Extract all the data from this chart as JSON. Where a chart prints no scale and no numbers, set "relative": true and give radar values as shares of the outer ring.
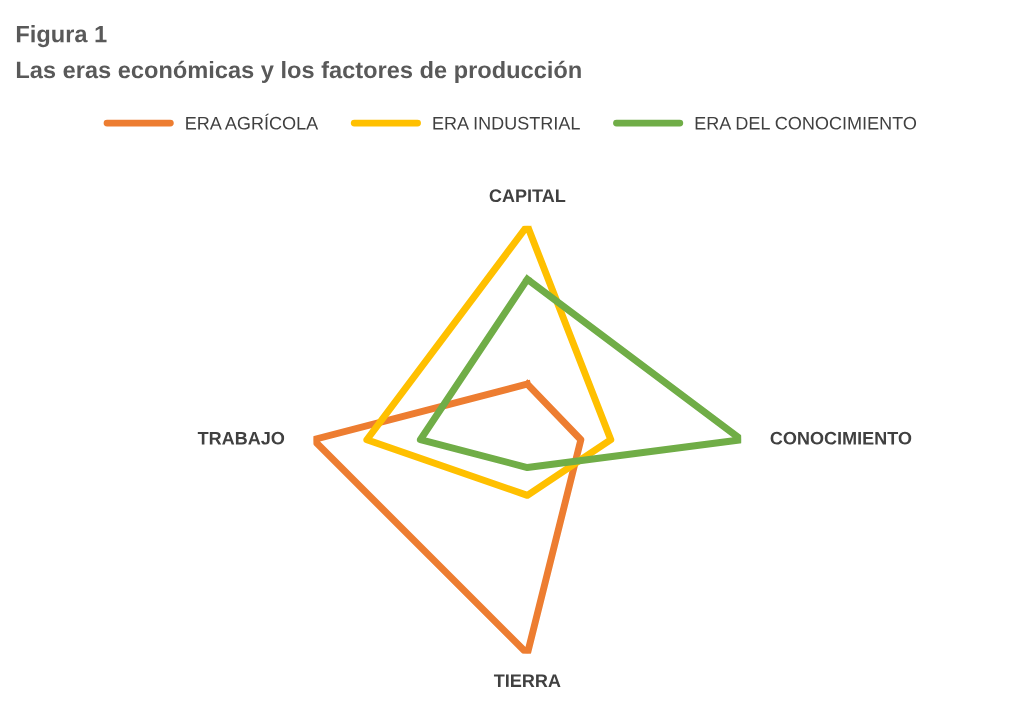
{
  "chart_data": {
    "type": "radar",
    "title": "Figura 1",
    "subtitle": "Las eras económicas y los factores de producción",
    "categories": [
      "CAPITAL",
      "CONOCIMIENTO",
      "TIERRA",
      "TRABAJO"
    ],
    "relative": true,
    "grid": false,
    "legend": "top",
    "marker": "none",
    "line_style": "solid",
    "series": [
      {
        "name": "ERA AGRÍCOLA",
        "color": "#ed7d31",
        "values": [
          0.26,
          0.25,
          1.0,
          1.0
        ]
      },
      {
        "name": "ERA INDUSTRIAL",
        "color": "#ffc000",
        "values": [
          1.0,
          0.39,
          0.26,
          0.75
        ]
      },
      {
        "name": "ERA DEL CONOCIMIENTO",
        "color": "#70ad47",
        "values": [
          0.75,
          1.0,
          0.13,
          0.5
        ]
      }
    ]
  }
}
